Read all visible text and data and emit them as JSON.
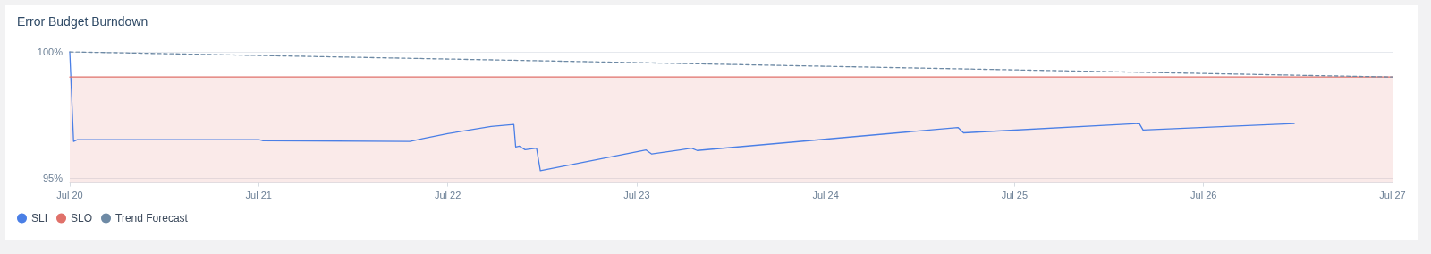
{
  "chart_data": {
    "type": "line",
    "title": "Error Budget Burndown",
    "xlim": [
      "--07-20",
      "--07-27"
    ],
    "xticks": [
      {
        "value": "--07-20",
        "label": "Jul 20"
      },
      {
        "value": "--07-21",
        "label": "Jul 21"
      },
      {
        "value": "--07-22",
        "label": "Jul 22"
      },
      {
        "value": "--07-23",
        "label": "Jul 23"
      },
      {
        "value": "--07-24",
        "label": "Jul 24"
      },
      {
        "value": "--07-25",
        "label": "Jul 25"
      },
      {
        "value": "--07-26",
        "label": "Jul 26"
      },
      {
        "value": "--07-27",
        "label": "Jul 27"
      }
    ],
    "ylim": [
      94.8,
      100
    ],
    "yticks": [
      {
        "value": 95,
        "label": "95%"
      },
      {
        "value": 100,
        "label": "100%"
      }
    ],
    "grid": "y",
    "legend": "bottom left",
    "marker": "none",
    "series": [
      {
        "name": "SLI",
        "color": "#4a7fe6",
        "line_style": "solid",
        "x": [
          "--07-20T00:00",
          "--07-20T00:29",
          "--07-20T00:58",
          "--07-21T00:00",
          "--07-21T00:29",
          "--07-21T19:12",
          "--07-21T20:53",
          "--07-22T00:00",
          "--07-22T05:31",
          "--07-22T08:24",
          "--07-22T08:38",
          "--07-22T09:07",
          "--07-22T09:50",
          "--07-22T11:17",
          "--07-22T11:46",
          "--07-23T01:12",
          "--07-23T01:55",
          "--07-23T06:58",
          "--07-23T07:41",
          "--07-24T16:48",
          "--07-24T17:31",
          "--07-25T15:50",
          "--07-25T16:19",
          "--07-26T11:31"
        ],
        "values": [
          100,
          96.45,
          96.52,
          96.52,
          96.48,
          96.45,
          96.56,
          96.76,
          97.04,
          97.12,
          96.23,
          96.26,
          96.12,
          96.18,
          95.29,
          96.11,
          95.95,
          96.18,
          96.09,
          97.0,
          96.79,
          97.16,
          96.9,
          97.16
        ]
      },
      {
        "name": "SLO",
        "type": "area",
        "color": "#e0716a",
        "line_style": "solid",
        "x": [
          "--07-20",
          "--07-27"
        ],
        "values": [
          99,
          99
        ]
      },
      {
        "name": "Trend Forecast",
        "color": "#6e8aa5",
        "line_style": "dashed",
        "x": [
          "--07-20",
          "--07-27"
        ],
        "values": [
          100,
          99
        ]
      }
    ]
  }
}
